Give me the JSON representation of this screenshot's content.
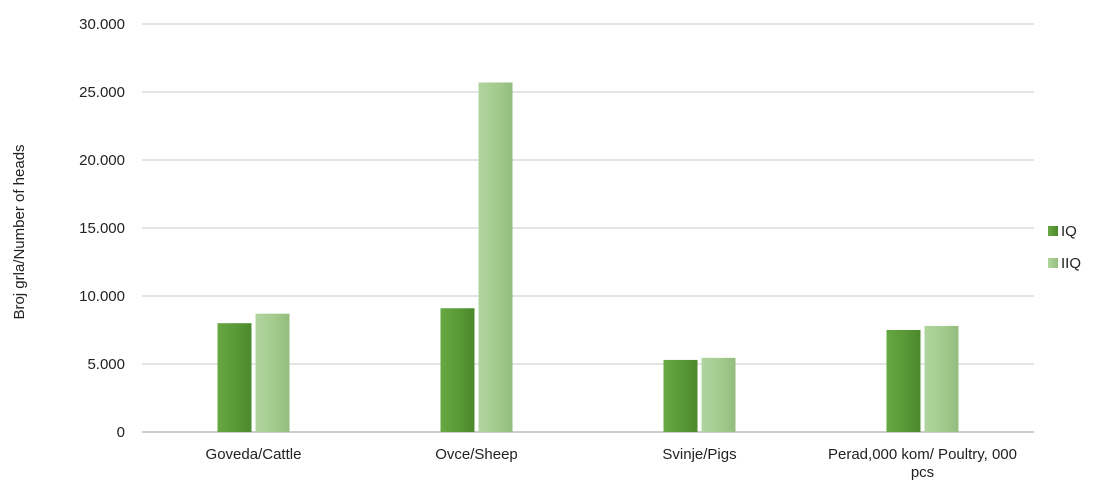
{
  "chart_data": {
    "type": "bar",
    "title": "",
    "xlabel": "",
    "ylabel": "Broj grla/Number of heads",
    "ylim": [
      0,
      30000
    ],
    "yticks": [
      0,
      5000,
      10000,
      15000,
      20000,
      25000,
      30000
    ],
    "ytick_labels": [
      "0",
      "5.000",
      "10.000",
      "15.000",
      "20.000",
      "25.000",
      "30.000"
    ],
    "grid": true,
    "legend_position": "right",
    "categories": [
      [
        "Goveda/Cattle"
      ],
      [
        "Ovce/Sheep"
      ],
      [
        "Svinje/Pigs"
      ],
      [
        "Perad,000 kom/ Poultry, 000",
        "pcs"
      ]
    ],
    "series": [
      {
        "name": "IQ",
        "color": "#5a9a37",
        "values": [
          8000,
          9100,
          5300,
          7500
        ]
      },
      {
        "name": "IIQ",
        "color": "#a4cc8f",
        "values": [
          8700,
          25700,
          5450,
          7800
        ]
      }
    ]
  }
}
